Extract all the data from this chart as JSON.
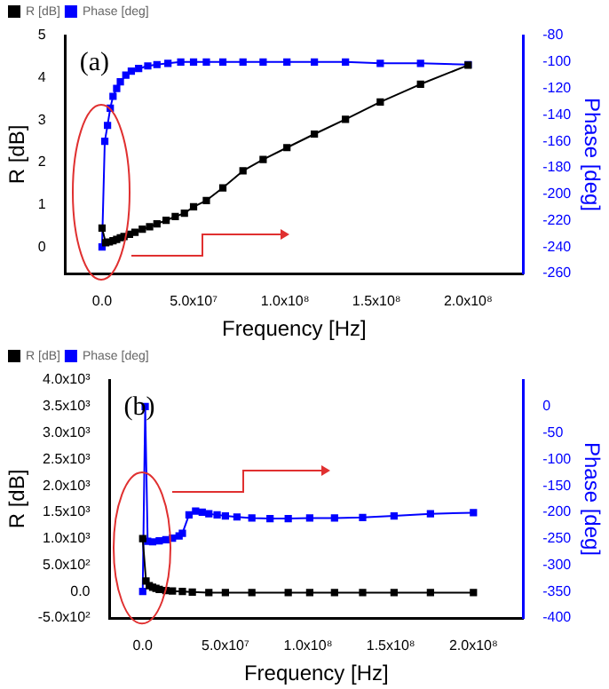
{
  "chart_data": [
    {
      "type": "line",
      "xlabel": "Frequency [Hz]",
      "ylabel": "R [dB]",
      "y2label": "Phase [deg]",
      "annotations": [
        "(a)"
      ],
      "legend": "top left",
      "marker": "square",
      "grid": false,
      "xlim": [
        -20000000,
        230000000
      ],
      "xticks": [
        {
          "value": 0,
          "label": "0.0"
        },
        {
          "value": 50000000,
          "label": "5.0x10⁷"
        },
        {
          "value": 100000000,
          "label": "1.0x10⁸"
        },
        {
          "value": 150000000,
          "label": "1.5x10⁸"
        },
        {
          "value": 200000000,
          "label": "2.0x10⁸"
        }
      ],
      "ylim": [
        -0.625,
        5
      ],
      "yticks": [
        0,
        1,
        2,
        3,
        4,
        5
      ],
      "y2lim": [
        -260,
        -80
      ],
      "y2ticks": [
        -260,
        -240,
        -220,
        -200,
        -180,
        -160,
        -140,
        -120,
        -100,
        -80
      ],
      "series": [
        {
          "name": "R [dB]",
          "color": "#000000",
          "x": [
            0,
            2000000,
            4000000,
            6000000,
            8000000,
            10000000,
            12000000,
            15000000,
            18000000,
            22000000,
            26000000,
            30000000,
            35000000,
            40000000,
            45000000,
            50000000,
            57000000,
            66000000,
            77000000,
            88000000,
            101000000,
            116000000,
            133000000,
            152000000,
            174000000,
            200000000
          ],
          "values": [
            0.45,
            0.1,
            0.12,
            0.15,
            0.18,
            0.22,
            0.25,
            0.3,
            0.35,
            0.42,
            0.48,
            0.55,
            0.63,
            0.72,
            0.8,
            0.95,
            1.1,
            1.4,
            1.8,
            2.07,
            2.35,
            2.67,
            3.02,
            3.43,
            3.85,
            4.3
          ]
        },
        {
          "name": "Phase [deg]",
          "color": "#0000ff",
          "axis": "y2",
          "x": [
            0,
            1500000,
            3000000,
            4500000,
            6000000,
            8000000,
            10000000,
            13000000,
            16000000,
            20000000,
            25000000,
            30000000,
            36000000,
            43000000,
            50000000,
            57000000,
            66000000,
            77000000,
            88000000,
            101000000,
            116000000,
            133000000,
            152000000,
            174000000,
            200000000
          ],
          "values": [
            -240,
            -160,
            -148,
            -135,
            -126,
            -120,
            -115,
            -110,
            -107,
            -105,
            -103,
            -102,
            -101,
            -100,
            -100,
            -100,
            -100,
            -100,
            -100,
            -100,
            -100,
            -100,
            -101,
            -101,
            -102
          ]
        }
      ]
    },
    {
      "type": "line",
      "xlabel": "Frequency [Hz]",
      "ylabel": "R [dB]",
      "y2label": "Phase [deg]",
      "annotations": [
        "(b)"
      ],
      "legend": "top left",
      "marker": "square",
      "grid": false,
      "xlim": [
        -20000000,
        230000000
      ],
      "xticks": [
        {
          "value": 0,
          "label": "0.0"
        },
        {
          "value": 50000000,
          "label": "5.0x10⁷"
        },
        {
          "value": 100000000,
          "label": "1.0x10⁸"
        },
        {
          "value": 150000000,
          "label": "1.5x10⁸"
        },
        {
          "value": 200000000,
          "label": "2.0x10⁸"
        }
      ],
      "ylim": [
        -500,
        4000
      ],
      "yticks": [
        {
          "value": -500,
          "label": "-5.0x10²"
        },
        {
          "value": 0,
          "label": "0.0"
        },
        {
          "value": 500,
          "label": "5.0x10²"
        },
        {
          "value": 1000,
          "label": "1.0x10³"
        },
        {
          "value": 1500,
          "label": "1.5x10³"
        },
        {
          "value": 2000,
          "label": "2.0x10³"
        },
        {
          "value": 2500,
          "label": "2.5x10³"
        },
        {
          "value": 3000,
          "label": "3.0x10³"
        },
        {
          "value": 3500,
          "label": "3.5x10³"
        },
        {
          "value": 4000,
          "label": "4.0x10³"
        }
      ],
      "y2lim": [
        -400,
        50
      ],
      "y2ticks": [
        -400,
        -350,
        -300,
        -250,
        -200,
        -150,
        -100,
        -50,
        0
      ],
      "series": [
        {
          "name": "R [dB]",
          "color": "#000000",
          "x": [
            0,
            2000000,
            4000000,
            6000000,
            8000000,
            10000000,
            14000000,
            18000000,
            24000000,
            30000000,
            40000000,
            50000000,
            66000000,
            88000000,
            101000000,
            116000000,
            133000000,
            152000000,
            174000000,
            200000000
          ],
          "values": [
            1000,
            200,
            110,
            80,
            60,
            40,
            20,
            10,
            0,
            -10,
            -20,
            -20,
            -20,
            -20,
            -20,
            -20,
            -20,
            -20,
            -20,
            -20
          ]
        },
        {
          "name": "Phase [deg]",
          "color": "#0000ff",
          "axis": "y2",
          "x": [
            0,
            1500000,
            3000000,
            6000000,
            10000000,
            14000000,
            18000000,
            22000000,
            24000000,
            28000000,
            32000000,
            36000000,
            40000000,
            45000000,
            50000000,
            57000000,
            66000000,
            77000000,
            88000000,
            101000000,
            116000000,
            133000000,
            152000000,
            174000000,
            200000000
          ],
          "values": [
            -350,
            0,
            -255,
            -256,
            -254,
            -252,
            -249,
            -245,
            -240,
            -205,
            -198,
            -200,
            -203,
            -205,
            -207,
            -209,
            -211,
            -212,
            -212,
            -211,
            -211,
            -210,
            -207,
            -203,
            -201
          ]
        }
      ]
    }
  ]
}
